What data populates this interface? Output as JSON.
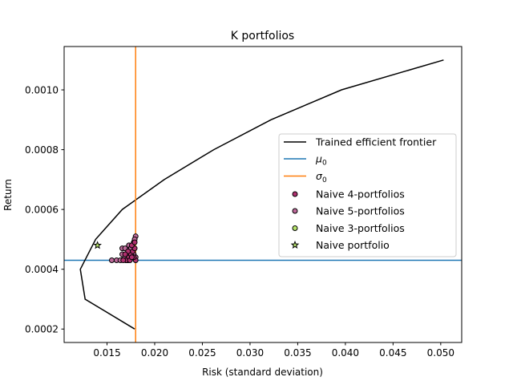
{
  "chart_data": {
    "type": "line",
    "title": "K portfolios",
    "xlabel": "Risk (standard deviation)",
    "ylabel": "Return",
    "xlim": [
      0.0105,
      0.0522
    ],
    "ylim": [
      0.000155,
      0.001145
    ],
    "xticks": [
      0.015,
      0.02,
      0.025,
      0.03,
      0.035,
      0.04,
      0.045,
      0.05
    ],
    "xtick_labels": [
      "0.015",
      "0.020",
      "0.025",
      "0.030",
      "0.035",
      "0.040",
      "0.045",
      "0.050"
    ],
    "yticks": [
      0.0002,
      0.0004,
      0.0006,
      0.0008,
      0.001
    ],
    "ytick_labels": [
      "0.0002",
      "0.0004",
      "0.0006",
      "0.0008",
      "0.0010"
    ],
    "grid": false,
    "legend_position": "center-right",
    "frontier": {
      "name": "Trained efficient frontier",
      "color": "#000000",
      "x": [
        0.0179,
        0.0127,
        0.0122,
        0.0138,
        0.0166,
        0.021,
        0.0262,
        0.0322,
        0.0396,
        0.0503
      ],
      "y": [
        0.0002,
        0.0003,
        0.0004,
        0.0005,
        0.0006,
        0.0007,
        0.0008,
        0.0009,
        0.001,
        0.0011
      ]
    },
    "mu0": {
      "name": "μ",
      "sub": "0",
      "value": 0.00043,
      "color": "#1f77b4"
    },
    "sigma0": {
      "name": "σ",
      "sub": "0",
      "value": 0.018,
      "color": "#ff7f0e"
    },
    "naive4": {
      "name": "Naive 4-portfolios",
      "color": "#b0306f",
      "x": [
        0.017,
        0.0173,
        0.0175,
        0.0177,
        0.0179,
        0.018,
        0.0172,
        0.0176,
        0.0178,
        0.0174,
        0.0169,
        0.0167,
        0.0176,
        0.0179
      ],
      "y": [
        0.00043,
        0.00044,
        0.00045,
        0.00046,
        0.00047,
        0.00043,
        0.00046,
        0.00048,
        0.00044,
        0.00043,
        0.00045,
        0.00043,
        0.00044,
        0.00049
      ]
    },
    "naive5": {
      "name": "Naive 5-portfolios",
      "color": "#bf6a9b",
      "x": [
        0.0155,
        0.016,
        0.0164,
        0.0166,
        0.0168,
        0.0171,
        0.0173,
        0.0175,
        0.0178,
        0.018,
        0.0166,
        0.0169,
        0.0172,
        0.0174,
        0.0177,
        0.0179,
        0.017,
        0.0175,
        0.0178,
        0.018
      ],
      "y": [
        0.00043,
        0.00043,
        0.00043,
        0.00047,
        0.00044,
        0.00045,
        0.00048,
        0.00046,
        0.00049,
        0.00051,
        0.00045,
        0.00047,
        0.00043,
        0.00044,
        0.00046,
        0.0005,
        0.00043,
        0.00047,
        0.00045,
        0.00044
      ]
    },
    "naive3": {
      "name": "Naive 3-portfolios",
      "color": "#b5e36a",
      "x": [],
      "y": []
    },
    "naive": {
      "name": "Naive portfolio",
      "color": "#b5e36a",
      "x": [
        0.014
      ],
      "y": [
        0.00048
      ]
    }
  }
}
